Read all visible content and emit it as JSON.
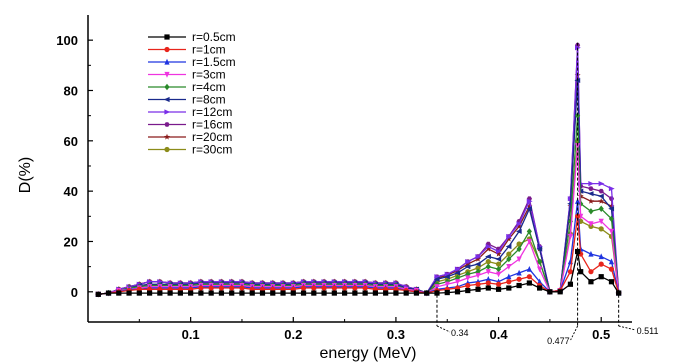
{
  "chart_data": {
    "type": "line",
    "xlabel": "energy (MeV)",
    "ylabel": "D(%)",
    "xlim": [
      0.0,
      0.53
    ],
    "ylim": [
      -12,
      110
    ],
    "xticks": [
      0.1,
      0.2,
      0.3,
      0.4,
      0.5
    ],
    "xtick_labels": [
      "0.1",
      "0.2",
      "0.3",
      "0.4",
      "0.5"
    ],
    "yticks": [
      0,
      20,
      40,
      60,
      80,
      100
    ],
    "ytick_labels": [
      "0",
      "20",
      "40",
      "60",
      "80",
      "100"
    ],
    "grid": false,
    "legend_position": "top-left",
    "x": [
      0.01,
      0.02,
      0.03,
      0.04,
      0.05,
      0.06,
      0.07,
      0.08,
      0.09,
      0.1,
      0.11,
      0.12,
      0.13,
      0.14,
      0.15,
      0.16,
      0.17,
      0.18,
      0.19,
      0.2,
      0.21,
      0.22,
      0.23,
      0.24,
      0.25,
      0.26,
      0.27,
      0.28,
      0.29,
      0.3,
      0.31,
      0.32,
      0.33,
      0.34,
      0.35,
      0.36,
      0.37,
      0.38,
      0.39,
      0.4,
      0.41,
      0.42,
      0.43,
      0.44,
      0.45,
      0.46,
      0.47,
      0.477,
      0.48,
      0.49,
      0.5,
      0.51,
      0.517
    ],
    "series": [
      {
        "name": "r=0.5cm",
        "color": "#000000",
        "marker": "square",
        "values": [
          -1,
          -0.5,
          -0.5,
          -0.5,
          -0.5,
          -0.5,
          -0.5,
          -0.5,
          -0.5,
          -0.5,
          -0.5,
          -0.5,
          -0.5,
          -0.5,
          -0.5,
          -0.5,
          -0.5,
          -0.5,
          -0.5,
          -0.5,
          -0.5,
          -0.5,
          -0.5,
          -0.5,
          -0.5,
          -0.5,
          -0.5,
          -0.5,
          -0.5,
          -0.5,
          -0.5,
          -0.5,
          -0.5,
          -0.5,
          -0.3,
          0,
          0.5,
          1,
          1.5,
          1,
          1.5,
          2.5,
          3.5,
          1.5,
          0,
          0,
          3,
          16,
          8,
          4,
          6,
          4,
          -0.5
        ]
      },
      {
        "name": "r=1cm",
        "color": "#e8251c",
        "marker": "circle",
        "values": [
          -1,
          -0.5,
          0,
          0.5,
          1,
          1,
          1,
          1,
          1,
          1,
          1.5,
          1.5,
          1.5,
          1.5,
          1.5,
          1,
          1,
          1,
          1,
          1,
          1.5,
          1.5,
          1.5,
          1.5,
          1.5,
          1.5,
          1.5,
          1,
          1,
          1,
          0.5,
          0,
          -0.5,
          0.5,
          1,
          1.5,
          2.5,
          3,
          3.5,
          3,
          4,
          5,
          6,
          2.5,
          0,
          0.5,
          8,
          30,
          15,
          8,
          11,
          9,
          -0.5
        ]
      },
      {
        "name": "r=1.5cm",
        "color": "#1f34e0",
        "marker": "triangle-up",
        "values": [
          -1,
          -0.5,
          0,
          1,
          1,
          1.5,
          1.5,
          1.5,
          1.5,
          1.5,
          2,
          2,
          2,
          2,
          2,
          1.5,
          1.5,
          1.5,
          1.5,
          1.5,
          2,
          2,
          2,
          2,
          2,
          2,
          2,
          1.5,
          1.5,
          1.5,
          0.5,
          0,
          -0.5,
          1,
          1.5,
          2,
          3.5,
          4,
          5,
          4,
          6,
          7.5,
          9,
          4,
          0,
          0.5,
          12,
          36,
          17,
          15,
          14,
          12,
          -0.5
        ]
      },
      {
        "name": "r=3cm",
        "color": "#ef34e0",
        "marker": "triangle-down",
        "values": [
          -1,
          -0.5,
          0.5,
          1,
          1.5,
          2,
          2,
          2,
          2,
          2,
          2.5,
          2.5,
          2.5,
          2.5,
          2.5,
          2,
          2,
          2,
          2,
          2,
          2.5,
          2.5,
          2.5,
          2.5,
          2.5,
          2.5,
          2.5,
          2,
          2,
          2,
          1,
          0.5,
          -0.5,
          2,
          3,
          4,
          5.5,
          6.5,
          8,
          7,
          10,
          13,
          20,
          9,
          0,
          0.5,
          22,
          58,
          30,
          27,
          28,
          24,
          -0.5
        ]
      },
      {
        "name": "r=4cm",
        "color": "#2a8a2a",
        "marker": "diamond",
        "values": [
          -1,
          -0.5,
          0.5,
          1.5,
          2,
          2.5,
          2.5,
          2.5,
          2.5,
          2.5,
          3,
          3,
          3,
          3,
          3,
          2.5,
          2.5,
          2.5,
          2.5,
          2.5,
          3,
          3,
          3,
          3,
          3,
          3,
          3,
          2.5,
          2.5,
          2.5,
          1,
          0.5,
          -0.5,
          3,
          4,
          5.5,
          7,
          8,
          10,
          9,
          13,
          17,
          24,
          12,
          0,
          0.5,
          28,
          70,
          35,
          32,
          33,
          29,
          -0.5
        ]
      },
      {
        "name": "r=8cm",
        "color": "#1a2a8c",
        "marker": "triangle-left",
        "values": [
          -1,
          -0.5,
          0.5,
          1.5,
          2.5,
          3,
          3,
          3,
          3,
          3,
          3.5,
          3.5,
          3.5,
          3.5,
          3.5,
          3,
          3,
          3,
          3,
          3,
          3.5,
          3.5,
          3.5,
          3.5,
          3.5,
          3.5,
          3.5,
          3,
          3,
          3,
          1.5,
          1,
          -0.5,
          5,
          6,
          7.5,
          10,
          11,
          14,
          13,
          18,
          24,
          33,
          17,
          0,
          0.5,
          35,
          84,
          40,
          39,
          38,
          33,
          -0.5
        ]
      },
      {
        "name": "r=12cm",
        "color": "#7a2ee8",
        "marker": "triangle-right",
        "values": [
          -1,
          -0.5,
          1,
          2,
          3,
          4,
          4,
          3.5,
          3.5,
          3.5,
          4,
          4,
          4,
          4,
          4,
          3.5,
          3.5,
          3.5,
          3.5,
          3.5,
          4,
          4,
          4,
          4,
          4,
          4,
          4,
          3.5,
          3.5,
          3.5,
          2,
          1,
          -0.5,
          6,
          7,
          9,
          12,
          14,
          18,
          16,
          22,
          27,
          36,
          18,
          0,
          0.5,
          37,
          97,
          43,
          43,
          43,
          41,
          -0.5
        ]
      },
      {
        "name": "r=16cm",
        "color": "#7a1a8c",
        "marker": "hexagon",
        "values": [
          -1,
          -0.5,
          1,
          2,
          3,
          4,
          4,
          3.5,
          3.5,
          3.5,
          4,
          4,
          4,
          4,
          4,
          3.5,
          3.5,
          3.5,
          3.5,
          3.5,
          4,
          4,
          4,
          4,
          4,
          4,
          4,
          3.5,
          3.5,
          3.5,
          2,
          1,
          -0.5,
          6,
          7,
          9,
          12,
          14,
          19,
          17,
          22,
          28,
          37,
          18,
          0,
          0.5,
          37,
          98,
          42,
          41,
          40,
          37,
          -0.5
        ]
      },
      {
        "name": "r=20cm",
        "color": "#8a1a1a",
        "marker": "star",
        "values": [
          -1,
          -0.5,
          1,
          2,
          3,
          4,
          4,
          3.5,
          3.5,
          3.5,
          4,
          4,
          4,
          4,
          4,
          3.5,
          3.5,
          3.5,
          3.5,
          3.5,
          4,
          4,
          4,
          4,
          4,
          4,
          4,
          3.5,
          3.5,
          3.5,
          2,
          1,
          -0.5,
          5.5,
          6.5,
          8.5,
          11,
          13,
          17,
          15,
          21,
          26,
          34,
          17,
          0,
          0.5,
          34,
          86,
          38,
          36,
          36,
          34,
          -0.5
        ]
      },
      {
        "name": "r=30cm",
        "color": "#8c8c1a",
        "marker": "circle",
        "values": [
          -1,
          -0.5,
          1,
          2,
          3,
          4,
          4,
          3.5,
          3.5,
          3.5,
          4,
          4,
          4,
          4,
          4,
          3.5,
          3.5,
          3.5,
          3.5,
          3.5,
          4,
          4,
          4,
          4,
          4,
          4,
          4,
          3.5,
          3.5,
          3.5,
          2,
          1,
          -0.5,
          4,
          5,
          6.5,
          8,
          9.5,
          12,
          11,
          15,
          19,
          21,
          12,
          0,
          0.5,
          23,
          60,
          28,
          26,
          25,
          22,
          -0.5
        ]
      }
    ],
    "annotations": [
      {
        "text": "0.34",
        "x": 0.34
      },
      {
        "text": "0.477",
        "x": 0.477
      },
      {
        "text": "0.511",
        "x": 0.517
      }
    ]
  }
}
